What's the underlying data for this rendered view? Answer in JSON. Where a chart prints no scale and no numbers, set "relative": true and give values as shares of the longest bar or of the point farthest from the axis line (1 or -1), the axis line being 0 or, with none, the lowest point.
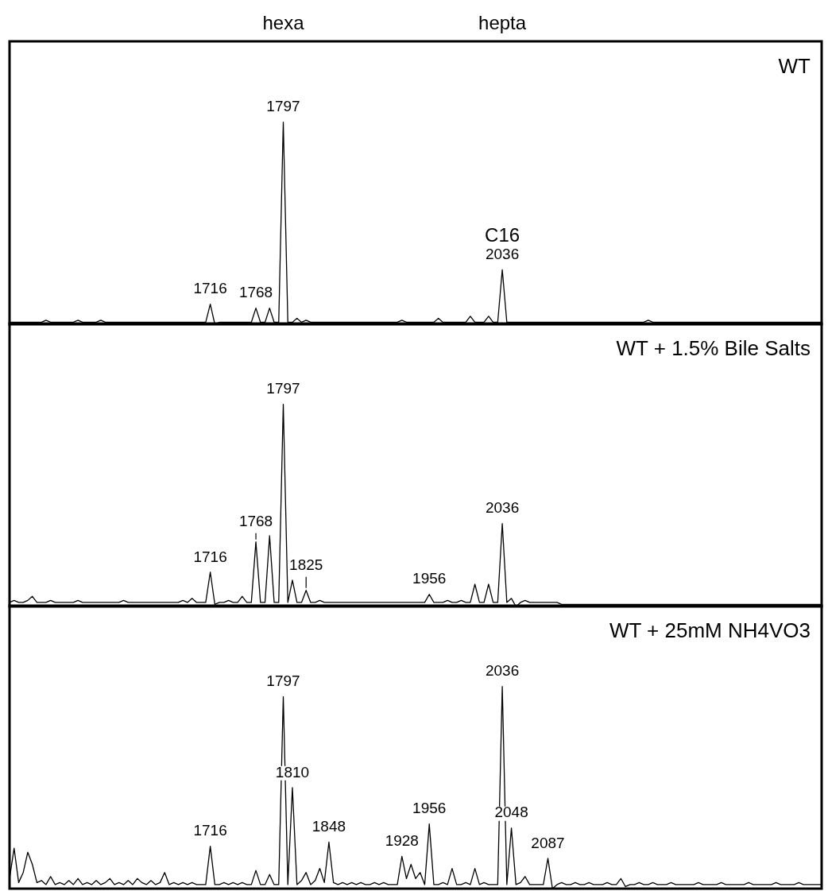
{
  "chart_data": [
    {
      "type": "line",
      "relative": true,
      "title": "WT",
      "marker": "none",
      "annotations": [
        "hexa",
        "hepta",
        {
          "text": "1716",
          "y": 0.1
        },
        {
          "text": "1768",
          "y": 0.08
        },
        {
          "text": "1797",
          "y": 1
        },
        {
          "text": "2036",
          "y": 0.27
        },
        {
          "text": "C16",
          "y": 0.27
        }
      ],
      "categories": [
        null,
        null,
        null,
        null,
        null,
        null,
        null,
        null,
        null,
        null,
        null,
        null,
        null,
        null,
        null,
        null,
        null,
        null,
        null,
        null,
        null,
        null,
        null,
        null,
        null,
        null,
        null,
        null,
        null,
        null,
        null,
        null,
        null,
        null,
        null,
        null,
        null,
        null,
        null,
        null,
        null,
        null,
        null,
        null,
        null,
        null,
        null,
        null,
        null,
        null,
        null,
        null,
        null,
        null,
        null,
        null,
        null,
        null,
        null,
        null,
        null,
        null,
        null,
        null,
        null,
        null,
        null,
        null,
        null,
        null,
        null,
        null,
        null,
        null,
        null,
        null,
        null,
        null,
        null,
        null,
        null,
        null,
        null,
        null,
        null,
        null,
        null,
        null,
        null,
        null,
        null,
        null,
        null,
        null,
        null,
        null,
        null,
        null,
        null,
        null,
        null,
        null,
        null,
        null,
        null,
        null,
        null,
        null,
        null,
        null,
        null,
        null,
        null,
        null,
        null,
        null,
        null,
        null,
        null,
        null,
        null,
        null,
        null,
        null,
        null,
        null,
        null,
        null,
        null,
        null,
        null,
        null,
        null,
        null,
        null,
        null,
        null,
        null,
        null,
        null,
        null,
        null,
        null,
        null,
        null,
        null,
        null,
        null,
        null,
        null,
        null,
        null,
        null,
        null,
        null,
        null,
        null,
        null,
        null,
        null,
        null,
        null,
        null,
        null,
        null,
        null,
        null,
        null,
        null,
        null,
        null,
        null,
        null,
        null,
        null,
        null,
        null,
        null,
        null
      ],
      "series": [
        {
          "color": "#000000",
          "values": [
            0.01,
            0.01,
            0.01,
            0.01,
            0.01,
            0.01,
            0.01,
            0.01,
            0.02,
            0.01,
            0.01,
            0.01,
            0.01,
            0.01,
            0.01,
            0.02,
            0.01,
            0.01,
            0.01,
            0.01,
            0.02,
            0.01,
            0.01,
            0.01,
            0.01,
            0.01,
            0.01,
            0.01,
            0.01,
            0.01,
            0.01,
            0.01,
            0.01,
            0.01,
            0.01,
            0.01,
            0.01,
            0.01,
            0.01,
            0.01,
            0.01,
            0.01,
            0.01,
            0.01,
            0.1,
            0,
            0.01,
            0.01,
            0.01,
            0.01,
            0.01,
            0.01,
            0.01,
            0.01,
            0.08,
            0.01,
            0.01,
            0.08,
            0.01,
            0.01,
            1,
            0.01,
            0.01,
            0.03,
            0.01,
            0.02,
            0.01,
            0.01,
            0.01,
            0.01,
            0.01,
            0.01,
            0.01,
            0.01,
            0.01,
            0.01,
            0.01,
            0.01,
            0.01,
            0.01,
            0.01,
            0.01,
            0.01,
            0.01,
            0.01,
            0.01,
            0.02,
            0.01,
            0.01,
            0.01,
            0.01,
            0.01,
            0.01,
            0.01,
            0.03,
            0.01,
            0.01,
            0.01,
            0.01,
            0.01,
            0.01,
            0.04,
            0.01,
            0.01,
            0.01,
            0.04,
            0.01,
            0.01,
            0.27,
            0.01,
            0.01,
            0.01,
            0.01,
            0.01,
            0.01,
            0.01,
            0.01,
            0.01,
            0.01,
            0.01,
            0.01,
            0.01,
            0.01,
            0.01,
            0.01,
            0.01,
            0.01,
            0.01,
            0.01,
            0.01,
            0.01,
            0.01,
            0.01,
            0.01,
            0.01,
            0.01,
            0.01,
            0.01,
            0.01,
            0.01,
            0.02,
            0.01,
            0.01,
            0.01,
            0.01,
            0.01,
            0.01,
            0.01,
            0.01,
            0.01,
            0.01,
            0.01,
            0.01,
            0.01,
            0.01,
            0.01,
            0.01,
            0.01,
            0.01,
            0.01,
            0.01,
            0.01,
            0.01,
            0.01,
            0.01,
            0.01,
            0.01,
            0.01,
            0.01,
            0.01,
            0.01,
            0.01,
            0.01,
            0.01,
            0.01,
            0.01,
            0.01,
            0.01,
            0.01
          ]
        }
      ]
    },
    {
      "type": "line",
      "relative": true,
      "title": "WT + 1.5% Bile Salts",
      "marker": "none",
      "annotations": [
        {
          "text": "1716",
          "y": 0.17
        },
        {
          "text": "1768",
          "y": 0.32
        },
        {
          "text": "1797",
          "y": 1
        },
        {
          "text": "1825",
          "y": 0.08
        },
        {
          "text": "1956",
          "y": 0.06
        },
        {
          "text": "2036",
          "y": 0.41
        }
      ],
      "categories": [
        null,
        null,
        null,
        null,
        null,
        null,
        null,
        null,
        null,
        null,
        null,
        null,
        null,
        null,
        null,
        null,
        null,
        null,
        null,
        null,
        null,
        null,
        null,
        null,
        null,
        null,
        null,
        null,
        null,
        null,
        null,
        null,
        null,
        null,
        null,
        null,
        null,
        null,
        null,
        null,
        null,
        null,
        null,
        null,
        null,
        null,
        null,
        null,
        null,
        null,
        null,
        null,
        null,
        null,
        null,
        null,
        null,
        null,
        null,
        null,
        null,
        null,
        null,
        null,
        null,
        null,
        null,
        null,
        null,
        null,
        null,
        null,
        null,
        null,
        null,
        null,
        null,
        null,
        null,
        null,
        null,
        null,
        null,
        null,
        null,
        null,
        null,
        null,
        null,
        null,
        null,
        null,
        null,
        null,
        null,
        null,
        null,
        null,
        null,
        null,
        null,
        null,
        null,
        null,
        null,
        null,
        null,
        null,
        null,
        null,
        null,
        null,
        null,
        null,
        null,
        null,
        null,
        null,
        null,
        null,
        null,
        null,
        null,
        null,
        null,
        null,
        null,
        null,
        null,
        null,
        null,
        null,
        null,
        null,
        null,
        null,
        null,
        null,
        null,
        null,
        null,
        null,
        null,
        null,
        null,
        null,
        null,
        null,
        null,
        null,
        null,
        null,
        null,
        null,
        null,
        null,
        null,
        null,
        null,
        null,
        null,
        null,
        null,
        null,
        null,
        null,
        null,
        null,
        null,
        null,
        null,
        null,
        null,
        null,
        null,
        null,
        null,
        null,
        null
      ],
      "series": [
        {
          "color": "#000000",
          "values": [
            0.02,
            0.03,
            0.02,
            0.02,
            0.03,
            0.05,
            0.02,
            0.02,
            0.02,
            0.03,
            0.02,
            0.02,
            0.02,
            0.02,
            0.02,
            0.03,
            0.02,
            0.02,
            0.02,
            0.02,
            0.02,
            0.02,
            0.02,
            0.02,
            0.02,
            0.03,
            0.02,
            0.02,
            0.02,
            0.02,
            0.02,
            0.02,
            0.02,
            0.02,
            0.02,
            0.02,
            0.02,
            0.02,
            0.03,
            0.02,
            0.04,
            0.02,
            0.02,
            0.02,
            0.17,
            0.01,
            0.02,
            0.02,
            0.03,
            0.02,
            0.02,
            0.05,
            0.02,
            0.02,
            0.32,
            0.02,
            0.02,
            0.35,
            0.02,
            0.02,
            1,
            0.02,
            0.13,
            0.02,
            0.02,
            0.08,
            0.02,
            0.02,
            0.03,
            0.02,
            0.02,
            0.02,
            0.02,
            0.02,
            0.02,
            0.02,
            0.02,
            0.02,
            0.02,
            0.02,
            0.02,
            0.02,
            0.02,
            0.02,
            0.02,
            0.02,
            0.02,
            0.02,
            0.02,
            0.02,
            0.02,
            0.02,
            0.06,
            0.02,
            0.02,
            0.02,
            0.03,
            0.02,
            0.02,
            0.03,
            0.02,
            0.02,
            0.11,
            0.02,
            0.02,
            0.11,
            0.02,
            0.02,
            0.41,
            0.02,
            0.04,
            0,
            0.02,
            0.03,
            0.02,
            0.02,
            0.02,
            0.02,
            0.02,
            0.02,
            0.02,
            0.01,
            0.01,
            0.01,
            0.01,
            0.01,
            0.01,
            0.01,
            0.01,
            0.01,
            0.01,
            0.01,
            0.01,
            0.01,
            0.01,
            0.01,
            0.01,
            0.01,
            0.01,
            0.01,
            0.01,
            0.01,
            0.01,
            0.01,
            0.01,
            0.01,
            0.01,
            0.01,
            0.01,
            0.01,
            0.01,
            0.01,
            0.01,
            0.01,
            0.01,
            0.01,
            0.01,
            0.01,
            0.01,
            0.01,
            0.01,
            0.01,
            0.01,
            0.01,
            0.01,
            0.01,
            0.01,
            0.01,
            0.01,
            0.01,
            0.01,
            0.01,
            0.01,
            0.01,
            0.01,
            0.01,
            0.01,
            0.01,
            0.01
          ]
        }
      ]
    },
    {
      "type": "line",
      "relative": true,
      "title": "WT + 25mM NH4VO3",
      "marker": "none",
      "annotations": [
        {
          "text": "1716",
          "y": 0.21
        },
        {
          "text": "1797",
          "y": 0.95
        },
        {
          "text": "1810",
          "y": 0.5
        },
        {
          "text": "1848",
          "y": 0.23
        },
        {
          "text": "1928",
          "y": 0.16
        },
        {
          "text": "1956",
          "y": 0.32
        },
        {
          "text": "2036",
          "y": 1
        },
        {
          "text": "2048",
          "y": 0.3
        },
        {
          "text": "2087",
          "y": 0.15
        }
      ],
      "categories": [
        null,
        null,
        null,
        null,
        null,
        null,
        null,
        null,
        null,
        null,
        null,
        null,
        null,
        null,
        null,
        null,
        null,
        null,
        null,
        null,
        null,
        null,
        null,
        null,
        null,
        null,
        null,
        null,
        null,
        null,
        null,
        null,
        null,
        null,
        null,
        null,
        null,
        null,
        null,
        null,
        null,
        null,
        null,
        null,
        null,
        null,
        null,
        null,
        null,
        null,
        null,
        null,
        null,
        null,
        null,
        null,
        null,
        null,
        null,
        null,
        null,
        null,
        null,
        null,
        null,
        null,
        null,
        null,
        null,
        null,
        null,
        null,
        null,
        null,
        null,
        null,
        null,
        null,
        null,
        null,
        null,
        null,
        null,
        null,
        null,
        null,
        null,
        null,
        null,
        null,
        null,
        null,
        null,
        null,
        null,
        null,
        null,
        null,
        null,
        null,
        null,
        null,
        null,
        null,
        null,
        null,
        null,
        null,
        null,
        null,
        null,
        null,
        null,
        null,
        null,
        null,
        null,
        null,
        null,
        null,
        null,
        null,
        null,
        null,
        null,
        null,
        null,
        null,
        null,
        null,
        null,
        null,
        null,
        null,
        null,
        null,
        null,
        null,
        null,
        null,
        null,
        null,
        null,
        null,
        null,
        null,
        null,
        null,
        null,
        null,
        null,
        null,
        null,
        null,
        null,
        null,
        null,
        null,
        null,
        null,
        null,
        null,
        null,
        null,
        null,
        null,
        null,
        null,
        null,
        null,
        null,
        null,
        null,
        null,
        null,
        null,
        null,
        null,
        null
      ],
      "series": [
        {
          "color": "#000000",
          "values": [
            0.05,
            0.2,
            0.03,
            0.08,
            0.18,
            0.12,
            0.03,
            0.04,
            0.02,
            0.06,
            0.02,
            0.03,
            0.02,
            0.04,
            0.02,
            0.05,
            0.02,
            0.03,
            0.02,
            0.04,
            0.02,
            0.03,
            0.05,
            0.02,
            0.03,
            0.02,
            0.04,
            0.02,
            0.05,
            0.03,
            0.02,
            0.04,
            0.02,
            0.03,
            0.08,
            0.02,
            0.03,
            0.02,
            0.03,
            0.02,
            0.03,
            0.02,
            0.02,
            0.02,
            0.21,
            0.02,
            0.02,
            0.03,
            0.02,
            0.03,
            0.02,
            0.03,
            0.02,
            0.02,
            0.09,
            0.02,
            0.02,
            0.07,
            0.02,
            0.02,
            0.95,
            0.02,
            0.5,
            0.02,
            0.04,
            0.08,
            0.02,
            0.04,
            0.1,
            0.03,
            0.23,
            0.03,
            0.02,
            0.03,
            0.02,
            0.03,
            0.02,
            0.03,
            0.02,
            0.02,
            0.03,
            0.02,
            0.03,
            0.02,
            0.02,
            0.02,
            0.16,
            0.05,
            0.12,
            0.05,
            0.08,
            0.02,
            0.32,
            0.02,
            0.02,
            0.03,
            0.02,
            0.1,
            0.02,
            0.02,
            0.03,
            0.02,
            0.1,
            0.02,
            0.03,
            0.02,
            0.02,
            0.02,
            1,
            0.02,
            0.3,
            0.02,
            0.03,
            0.06,
            0.02,
            0.02,
            0.02,
            0.02,
            0.15,
            0,
            0.02,
            0.03,
            0.02,
            0.02,
            0.03,
            0.02,
            0.02,
            0.03,
            0.02,
            0.02,
            0.02,
            0.03,
            0.02,
            0.02,
            0.05,
            0.01,
            0.02,
            0.02,
            0.03,
            0.02,
            0.02,
            0.03,
            0.02,
            0.02,
            0.02,
            0.03,
            0.02,
            0.02,
            0.02,
            0.02,
            0.02,
            0.03,
            0.02,
            0.02,
            0.02,
            0.02,
            0.03,
            0.02,
            0.02,
            0.02,
            0.02,
            0.02,
            0.03,
            0.02,
            0.02,
            0.02,
            0.02,
            0.02,
            0.03,
            0.02,
            0.02,
            0.02,
            0.02,
            0.03,
            0.02,
            0.02,
            0.02,
            0.02,
            0.02
          ]
        }
      ]
    }
  ]
}
